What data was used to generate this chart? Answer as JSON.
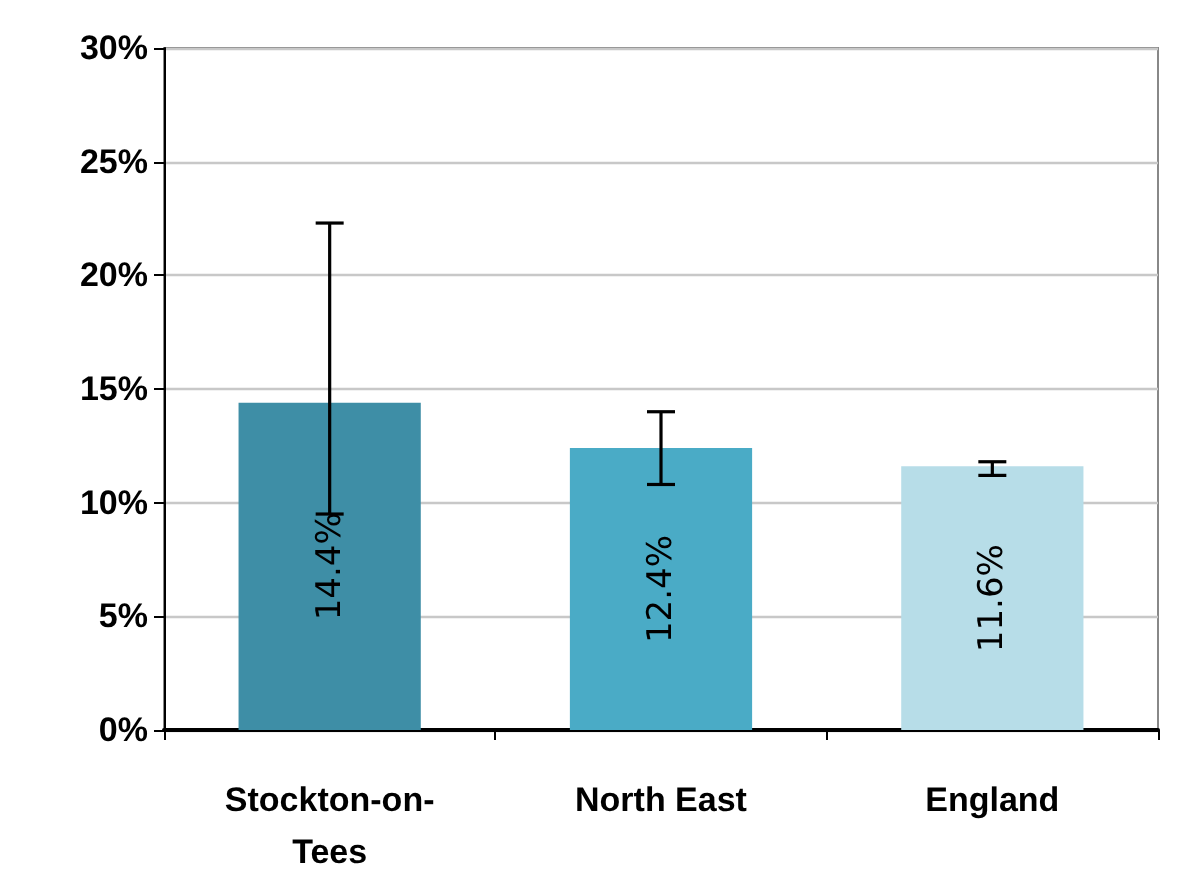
{
  "chart_data": {
    "type": "bar",
    "categories": [
      "Stockton-on-Tees",
      "North East",
      "England"
    ],
    "values": [
      14.4,
      12.4,
      11.6
    ],
    "colors": [
      "#3e8ea6",
      "#4aabc6",
      "#b7dde8"
    ],
    "errors": [
      [
        9.5,
        22.3
      ],
      [
        10.8,
        14.0
      ],
      [
        11.2,
        11.8
      ]
    ],
    "value_labels": [
      "14.4%",
      "12.4%",
      "11.6%"
    ],
    "ylim": [
      0,
      30
    ],
    "yticks": [
      {
        "value": 0,
        "label": "0%"
      },
      {
        "value": 5,
        "label": "5%"
      },
      {
        "value": 10,
        "label": "10%"
      },
      {
        "value": 15,
        "label": "15%"
      },
      {
        "value": 20,
        "label": "20%"
      },
      {
        "value": 25,
        "label": "25%"
      },
      {
        "value": 30,
        "label": "30%"
      }
    ],
    "grid": true
  }
}
